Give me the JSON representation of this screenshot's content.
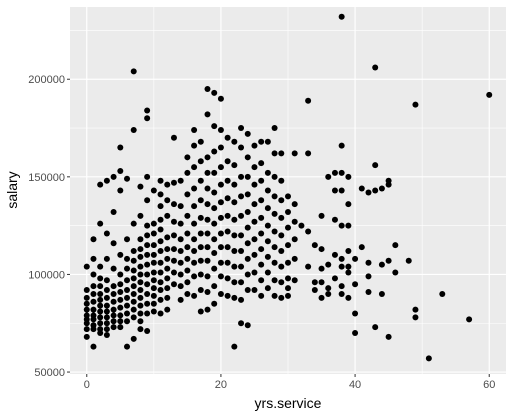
{
  "chart_data": {
    "type": "scatter",
    "xlabel": "yrs.service",
    "ylabel": "salary",
    "xlim": [
      -2.5,
      62.5
    ],
    "ylim": [
      49000,
      237000
    ],
    "x_ticks": [
      0,
      20,
      40,
      60
    ],
    "x_tick_labels": [
      "0",
      "20",
      "40",
      "60"
    ],
    "y_ticks": [
      50000,
      100000,
      150000,
      200000
    ],
    "y_tick_labels": [
      "50000",
      "100000",
      "150000",
      "200000"
    ],
    "grid": true,
    "panel_background": "#ebebeb",
    "grid_color": "#ffffff",
    "point_color": "#000000",
    "points": [
      [
        0,
        92000
      ],
      [
        0,
        88000
      ],
      [
        0,
        85000
      ],
      [
        0,
        82000
      ],
      [
        0,
        79000
      ],
      [
        0,
        77000
      ],
      [
        0,
        75000
      ],
      [
        0,
        72000
      ],
      [
        0,
        104000
      ],
      [
        0,
        68000
      ],
      [
        1,
        108000
      ],
      [
        1,
        100000
      ],
      [
        1,
        94000
      ],
      [
        1,
        90000
      ],
      [
        1,
        86000
      ],
      [
        1,
        82000
      ],
      [
        1,
        79000
      ],
      [
        1,
        77000
      ],
      [
        1,
        74000
      ],
      [
        1,
        72000
      ],
      [
        1,
        63000
      ],
      [
        1,
        118000
      ],
      [
        2,
        146000
      ],
      [
        2,
        126000
      ],
      [
        2,
        104000
      ],
      [
        2,
        98000
      ],
      [
        2,
        94000
      ],
      [
        2,
        90000
      ],
      [
        2,
        87000
      ],
      [
        2,
        84000
      ],
      [
        2,
        81000
      ],
      [
        2,
        78000
      ],
      [
        2,
        75000
      ],
      [
        2,
        72000
      ],
      [
        2,
        70000
      ],
      [
        3,
        148000
      ],
      [
        3,
        121000
      ],
      [
        3,
        108000
      ],
      [
        3,
        97000
      ],
      [
        3,
        92000
      ],
      [
        3,
        88000
      ],
      [
        3,
        84000
      ],
      [
        3,
        81000
      ],
      [
        3,
        78000
      ],
      [
        3,
        75000
      ],
      [
        3,
        72000
      ],
      [
        3,
        69000
      ],
      [
        4,
        150000
      ],
      [
        4,
        132000
      ],
      [
        4,
        116000
      ],
      [
        4,
        103000
      ],
      [
        4,
        94000
      ],
      [
        4,
        90000
      ],
      [
        4,
        86000
      ],
      [
        4,
        82000
      ],
      [
        4,
        79000
      ],
      [
        4,
        76000
      ],
      [
        4,
        73000
      ],
      [
        5,
        165000
      ],
      [
        5,
        153000
      ],
      [
        5,
        143000
      ],
      [
        5,
        110000
      ],
      [
        5,
        100000
      ],
      [
        5,
        95000
      ],
      [
        5,
        91000
      ],
      [
        5,
        87000
      ],
      [
        5,
        83000
      ],
      [
        5,
        79000
      ],
      [
        5,
        76000
      ],
      [
        5,
        73000
      ],
      [
        6,
        149000
      ],
      [
        6,
        118000
      ],
      [
        6,
        108000
      ],
      [
        6,
        103000
      ],
      [
        6,
        97000
      ],
      [
        6,
        92000
      ],
      [
        6,
        88000
      ],
      [
        6,
        84000
      ],
      [
        6,
        80000
      ],
      [
        6,
        76000
      ],
      [
        6,
        63000
      ],
      [
        7,
        204000
      ],
      [
        7,
        174000
      ],
      [
        7,
        126000
      ],
      [
        7,
        112000
      ],
      [
        7,
        107000
      ],
      [
        7,
        102000
      ],
      [
        7,
        98000
      ],
      [
        7,
        94000
      ],
      [
        7,
        90000
      ],
      [
        7,
        86000
      ],
      [
        7,
        82000
      ],
      [
        7,
        78000
      ],
      [
        7,
        67000
      ],
      [
        8,
        145000
      ],
      [
        8,
        130000
      ],
      [
        8,
        118000
      ],
      [
        8,
        113000
      ],
      [
        8,
        109000
      ],
      [
        8,
        104000
      ],
      [
        8,
        100000
      ],
      [
        8,
        96000
      ],
      [
        8,
        92000
      ],
      [
        8,
        88000
      ],
      [
        8,
        84000
      ],
      [
        8,
        80000
      ],
      [
        8,
        76000
      ],
      [
        8,
        72000
      ],
      [
        9,
        184000
      ],
      [
        9,
        180000
      ],
      [
        9,
        150000
      ],
      [
        9,
        138000
      ],
      [
        9,
        125000
      ],
      [
        9,
        120000
      ],
      [
        9,
        115000
      ],
      [
        9,
        110000
      ],
      [
        9,
        105000
      ],
      [
        9,
        100000
      ],
      [
        9,
        95000
      ],
      [
        9,
        90000
      ],
      [
        9,
        85000
      ],
      [
        9,
        80000
      ],
      [
        9,
        71000
      ],
      [
        10,
        143000
      ],
      [
        10,
        126000
      ],
      [
        10,
        121000
      ],
      [
        10,
        115000
      ],
      [
        10,
        110000
      ],
      [
        10,
        106000
      ],
      [
        10,
        101000
      ],
      [
        10,
        97000
      ],
      [
        10,
        93000
      ],
      [
        10,
        89000
      ],
      [
        10,
        85000
      ],
      [
        10,
        81000
      ],
      [
        11,
        148000
      ],
      [
        11,
        141000
      ],
      [
        11,
        135000
      ],
      [
        11,
        128000
      ],
      [
        11,
        123000
      ],
      [
        11,
        117000
      ],
      [
        11,
        112000
      ],
      [
        11,
        106000
      ],
      [
        11,
        101000
      ],
      [
        11,
        96000
      ],
      [
        11,
        92000
      ],
      [
        11,
        87000
      ],
      [
        11,
        80000
      ],
      [
        12,
        146000
      ],
      [
        12,
        138000
      ],
      [
        12,
        130000
      ],
      [
        12,
        119000
      ],
      [
        12,
        113000
      ],
      [
        12,
        108000
      ],
      [
        12,
        103000
      ],
      [
        12,
        98000
      ],
      [
        12,
        93000
      ],
      [
        12,
        88000
      ],
      [
        12,
        82000
      ],
      [
        13,
        170000
      ],
      [
        13,
        147000
      ],
      [
        13,
        136000
      ],
      [
        13,
        127000
      ],
      [
        13,
        120000
      ],
      [
        13,
        113000
      ],
      [
        13,
        107000
      ],
      [
        13,
        101000
      ],
      [
        13,
        95000
      ],
      [
        14,
        148000
      ],
      [
        14,
        135000
      ],
      [
        14,
        126000
      ],
      [
        14,
        118000
      ],
      [
        14,
        112000
      ],
      [
        14,
        106000
      ],
      [
        14,
        100000
      ],
      [
        14,
        94000
      ],
      [
        14,
        87000
      ],
      [
        15,
        160000
      ],
      [
        15,
        152000
      ],
      [
        15,
        141000
      ],
      [
        15,
        130000
      ],
      [
        15,
        121000
      ],
      [
        15,
        114000
      ],
      [
        15,
        108000
      ],
      [
        15,
        102000
      ],
      [
        15,
        96000
      ],
      [
        15,
        90000
      ],
      [
        16,
        174000
      ],
      [
        16,
        166000
      ],
      [
        16,
        155000
      ],
      [
        16,
        144000
      ],
      [
        16,
        135000
      ],
      [
        16,
        126000
      ],
      [
        16,
        118000
      ],
      [
        16,
        112000
      ],
      [
        16,
        106000
      ],
      [
        16,
        99000
      ],
      [
        16,
        89000
      ],
      [
        17,
        168000
      ],
      [
        17,
        158000
      ],
      [
        17,
        148000
      ],
      [
        17,
        138000
      ],
      [
        17,
        129000
      ],
      [
        17,
        121000
      ],
      [
        17,
        114000
      ],
      [
        17,
        107000
      ],
      [
        17,
        100000
      ],
      [
        17,
        92000
      ],
      [
        17,
        81000
      ],
      [
        18,
        195000
      ],
      [
        18,
        182000
      ],
      [
        18,
        160000
      ],
      [
        18,
        152000
      ],
      [
        18,
        144000
      ],
      [
        18,
        136000
      ],
      [
        18,
        128000
      ],
      [
        18,
        121000
      ],
      [
        18,
        114000
      ],
      [
        18,
        107000
      ],
      [
        18,
        99000
      ],
      [
        18,
        91000
      ],
      [
        18,
        82000
      ],
      [
        19,
        193000
      ],
      [
        19,
        176000
      ],
      [
        19,
        163000
      ],
      [
        19,
        152000
      ],
      [
        19,
        142000
      ],
      [
        19,
        134000
      ],
      [
        19,
        126000
      ],
      [
        19,
        118000
      ],
      [
        19,
        111000
      ],
      [
        19,
        103000
      ],
      [
        19,
        94000
      ],
      [
        19,
        85000
      ],
      [
        20,
        190000
      ],
      [
        20,
        174000
      ],
      [
        20,
        165000
      ],
      [
        20,
        155000
      ],
      [
        20,
        146000
      ],
      [
        20,
        137000
      ],
      [
        20,
        129000
      ],
      [
        20,
        121000
      ],
      [
        20,
        114000
      ],
      [
        20,
        106000
      ],
      [
        20,
        99000
      ],
      [
        20,
        90000
      ],
      [
        21,
        170000
      ],
      [
        21,
        158000
      ],
      [
        21,
        148000
      ],
      [
        21,
        139000
      ],
      [
        21,
        130000
      ],
      [
        21,
        122000
      ],
      [
        21,
        114000
      ],
      [
        21,
        106000
      ],
      [
        21,
        98000
      ],
      [
        21,
        89000
      ],
      [
        22,
        168000
      ],
      [
        22,
        156000
      ],
      [
        22,
        146000
      ],
      [
        22,
        137000
      ],
      [
        22,
        128000
      ],
      [
        22,
        120000
      ],
      [
        22,
        112000
      ],
      [
        22,
        104000
      ],
      [
        22,
        96000
      ],
      [
        22,
        88000
      ],
      [
        22,
        63000
      ],
      [
        23,
        175000
      ],
      [
        23,
        165000
      ],
      [
        23,
        150000
      ],
      [
        23,
        140000
      ],
      [
        23,
        130000
      ],
      [
        23,
        120000
      ],
      [
        23,
        112000
      ],
      [
        23,
        104000
      ],
      [
        23,
        96000
      ],
      [
        23,
        87000
      ],
      [
        23,
        75000
      ],
      [
        24,
        172000
      ],
      [
        24,
        160000
      ],
      [
        24,
        150000
      ],
      [
        24,
        141000
      ],
      [
        24,
        132000
      ],
      [
        24,
        124000
      ],
      [
        24,
        116000
      ],
      [
        24,
        108000
      ],
      [
        24,
        100000
      ],
      [
        24,
        92000
      ],
      [
        24,
        74000
      ],
      [
        25,
        166000
      ],
      [
        25,
        155000
      ],
      [
        25,
        146000
      ],
      [
        25,
        136000
      ],
      [
        25,
        127000
      ],
      [
        25,
        118000
      ],
      [
        25,
        110000
      ],
      [
        25,
        101000
      ],
      [
        25,
        92000
      ],
      [
        26,
        168000
      ],
      [
        26,
        157000
      ],
      [
        26,
        148000
      ],
      [
        26,
        138000
      ],
      [
        26,
        129000
      ],
      [
        26,
        121000
      ],
      [
        26,
        113000
      ],
      [
        26,
        105000
      ],
      [
        26,
        97000
      ],
      [
        26,
        89000
      ],
      [
        27,
        168000
      ],
      [
        27,
        152000
      ],
      [
        27,
        143000
      ],
      [
        27,
        134000
      ],
      [
        27,
        125000
      ],
      [
        27,
        117000
      ],
      [
        27,
        109000
      ],
      [
        27,
        101000
      ],
      [
        27,
        93000
      ],
      [
        28,
        175000
      ],
      [
        28,
        162000
      ],
      [
        28,
        150000
      ],
      [
        28,
        140000
      ],
      [
        28,
        131000
      ],
      [
        28,
        122000
      ],
      [
        28,
        114000
      ],
      [
        28,
        106000
      ],
      [
        28,
        97000
      ],
      [
        28,
        89000
      ],
      [
        29,
        162000
      ],
      [
        29,
        148000
      ],
      [
        29,
        138000
      ],
      [
        29,
        129000
      ],
      [
        29,
        120000
      ],
      [
        29,
        112000
      ],
      [
        29,
        104000
      ],
      [
        29,
        96000
      ],
      [
        29,
        88000
      ],
      [
        30,
        140000
      ],
      [
        30,
        132000
      ],
      [
        30,
        124000
      ],
      [
        30,
        115000
      ],
      [
        30,
        106000
      ],
      [
        30,
        98000
      ],
      [
        30,
        93000
      ],
      [
        30,
        89000
      ],
      [
        31,
        162000
      ],
      [
        31,
        136000
      ],
      [
        31,
        127000
      ],
      [
        31,
        118000
      ],
      [
        31,
        108000
      ],
      [
        31,
        97000
      ],
      [
        32,
        125000
      ],
      [
        33,
        189000
      ],
      [
        33,
        162000
      ],
      [
        33,
        122000
      ],
      [
        33,
        104000
      ],
      [
        34,
        115000
      ],
      [
        34,
        96000
      ],
      [
        34,
        92000
      ],
      [
        35,
        130000
      ],
      [
        35,
        113000
      ],
      [
        35,
        103000
      ],
      [
        35,
        96000
      ],
      [
        35,
        88000
      ],
      [
        36,
        150000
      ],
      [
        36,
        105000
      ],
      [
        36,
        93000
      ],
      [
        36,
        90000
      ],
      [
        37,
        152000
      ],
      [
        37,
        143000
      ],
      [
        37,
        128000
      ],
      [
        37,
        110000
      ],
      [
        37,
        98000
      ],
      [
        38,
        232000
      ],
      [
        38,
        166000
      ],
      [
        38,
        152000
      ],
      [
        38,
        143000
      ],
      [
        38,
        125000
      ],
      [
        38,
        108000
      ],
      [
        38,
        104000
      ],
      [
        38,
        94000
      ],
      [
        38,
        90000
      ],
      [
        39,
        150000
      ],
      [
        39,
        136000
      ],
      [
        39,
        125000
      ],
      [
        39,
        112000
      ],
      [
        39,
        104000
      ],
      [
        39,
        101000
      ],
      [
        39,
        88000
      ],
      [
        40,
        108000
      ],
      [
        40,
        95000
      ],
      [
        40,
        80000
      ],
      [
        40,
        70000
      ],
      [
        41,
        144000
      ],
      [
        41,
        114000
      ],
      [
        42,
        142000
      ],
      [
        42,
        106000
      ],
      [
        42,
        99000
      ],
      [
        42,
        91000
      ],
      [
        43,
        206000
      ],
      [
        43,
        156000
      ],
      [
        43,
        143000
      ],
      [
        43,
        73000
      ],
      [
        44,
        144000
      ],
      [
        44,
        105000
      ],
      [
        44,
        90000
      ],
      [
        45,
        148000
      ],
      [
        45,
        146000
      ],
      [
        45,
        107000
      ],
      [
        45,
        68000
      ],
      [
        46,
        115000
      ],
      [
        46,
        101000
      ],
      [
        48,
        107000
      ],
      [
        49,
        187000
      ],
      [
        49,
        82000
      ],
      [
        49,
        78000
      ],
      [
        51,
        57000
      ],
      [
        53,
        90000
      ],
      [
        57,
        77000
      ],
      [
        60,
        192000
      ]
    ]
  }
}
